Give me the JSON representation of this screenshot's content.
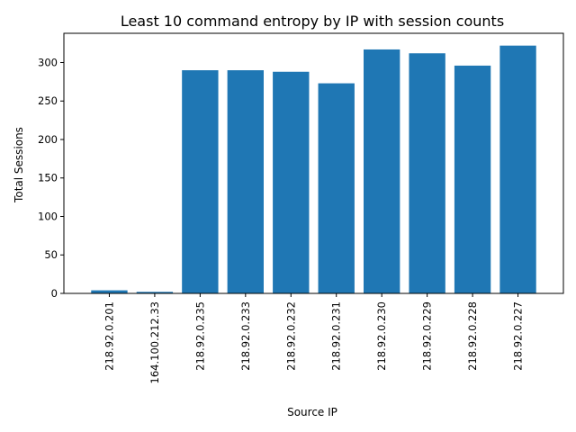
{
  "chart_data": {
    "type": "bar",
    "title": "Least 10 command entropy by IP with session counts",
    "xlabel": "Source IP",
    "ylabel": "Total Sessions",
    "categories": [
      "218.92.0.201",
      "164.100.212.33",
      "218.92.0.235",
      "218.92.0.233",
      "218.92.0.232",
      "218.92.0.231",
      "218.92.0.230",
      "218.92.0.229",
      "218.92.0.228",
      "218.92.0.227"
    ],
    "values": [
      4,
      2,
      290,
      290,
      288,
      273,
      317,
      312,
      296,
      322
    ],
    "ylim": [
      0,
      338
    ],
    "yticks": [
      0,
      50,
      100,
      150,
      200,
      250,
      300
    ],
    "grid": false,
    "legend": "none",
    "bar_color": "#1f77b4"
  }
}
